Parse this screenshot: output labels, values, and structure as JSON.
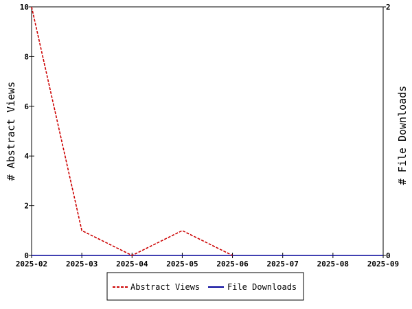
{
  "chart_data": {
    "type": "line",
    "x": [
      "2025-02",
      "2025-03",
      "2025-04",
      "2025-05",
      "2025-06",
      "2025-07",
      "2025-08",
      "2025-09"
    ],
    "series": [
      {
        "name": "Abstract Views",
        "axis": "left",
        "color": "#cc0000",
        "dash": "dashed",
        "values": [
          10,
          1,
          0,
          1,
          0,
          null,
          null,
          null
        ]
      },
      {
        "name": "File Downloads",
        "axis": "right",
        "color": "#000099",
        "dash": "solid",
        "values": [
          0,
          0,
          0,
          0,
          0,
          0,
          0,
          0
        ]
      }
    ],
    "ylabel": "# Abstract Views",
    "y2label": "# File Downloads",
    "ylim": [
      0,
      10
    ],
    "yticks": [
      0,
      2,
      4,
      6,
      8,
      10
    ],
    "y2lim": [
      0,
      2
    ],
    "y2ticks": [
      0,
      2
    ],
    "grid": false,
    "legend": "bottom"
  }
}
